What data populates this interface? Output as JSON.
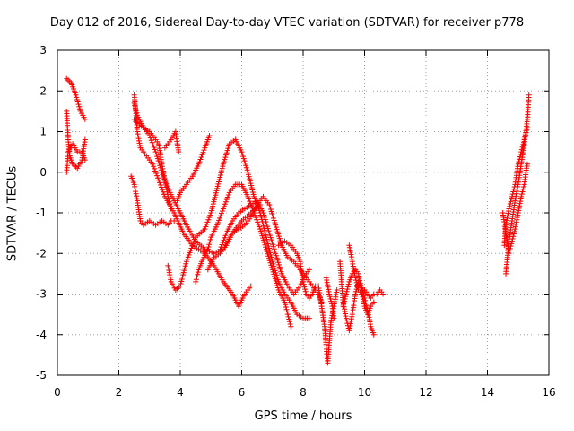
{
  "chart_data": {
    "type": "scatter",
    "title": "Day 012 of 2016, Sidereal Day-to-day VTEC variation (SDTVAR) for receiver p778",
    "xlabel": "GPS time / hours",
    "ylabel": "SDTVAR / TECUs",
    "xlim": [
      0,
      16
    ],
    "ylim": [
      -5,
      3
    ],
    "xticks": [
      "0",
      "2",
      "4",
      "6",
      "8",
      "10",
      "12",
      "14",
      "16"
    ],
    "yticks": [
      "3",
      "2",
      "1",
      "0",
      "-1",
      "-2",
      "-3",
      "-4",
      "-5"
    ],
    "xtick_values": [
      0,
      2,
      4,
      6,
      8,
      10,
      12,
      14,
      16
    ],
    "ytick_values": [
      3,
      2,
      1,
      0,
      -1,
      -2,
      -3,
      -4,
      -5
    ],
    "grid": true,
    "marker": "+",
    "color": "#ff0000",
    "series_tracks": [
      [
        [
          0.3,
          2.3
        ],
        [
          0.45,
          2.2
        ],
        [
          0.6,
          1.9
        ],
        [
          0.75,
          1.5
        ],
        [
          0.9,
          1.3
        ]
      ],
      [
        [
          0.3,
          1.5
        ],
        [
          0.35,
          0.8
        ],
        [
          0.4,
          0.4
        ],
        [
          0.5,
          0.2
        ],
        [
          0.65,
          0.1
        ],
        [
          0.8,
          0.3
        ],
        [
          0.9,
          0.8
        ]
      ],
      [
        [
          0.3,
          0.0
        ],
        [
          0.35,
          0.5
        ],
        [
          0.5,
          0.7
        ],
        [
          0.65,
          0.5
        ],
        [
          0.8,
          0.5
        ],
        [
          0.9,
          0.3
        ]
      ],
      [
        [
          2.5,
          1.9
        ],
        [
          2.55,
          1.5
        ],
        [
          2.6,
          1.0
        ],
        [
          2.7,
          0.6
        ],
        [
          2.9,
          0.4
        ],
        [
          3.1,
          0.2
        ],
        [
          3.3,
          -0.2
        ],
        [
          3.5,
          -0.6
        ],
        [
          3.8,
          -1.0
        ],
        [
          4.1,
          -1.5
        ],
        [
          4.4,
          -1.8
        ],
        [
          4.8,
          -2.0
        ],
        [
          5.1,
          -2.3
        ],
        [
          5.4,
          -2.7
        ],
        [
          5.7,
          -3.0
        ],
        [
          5.9,
          -3.3
        ],
        [
          6.1,
          -3.0
        ],
        [
          6.3,
          -2.8
        ]
      ],
      [
        [
          2.5,
          1.7
        ],
        [
          2.6,
          1.4
        ],
        [
          2.8,
          1.1
        ],
        [
          3.0,
          0.9
        ],
        [
          3.2,
          0.5
        ],
        [
          3.4,
          0.0
        ],
        [
          3.6,
          -0.4
        ],
        [
          3.8,
          -0.7
        ],
        [
          4.0,
          -1.0
        ],
        [
          4.2,
          -1.3
        ],
        [
          4.5,
          -1.7
        ],
        [
          4.8,
          -1.9
        ],
        [
          5.1,
          -2.0
        ],
        [
          5.4,
          -1.9
        ],
        [
          5.7,
          -1.5
        ],
        [
          6.0,
          -1.2
        ],
        [
          6.3,
          -1.0
        ],
        [
          6.6,
          -0.8
        ]
      ],
      [
        [
          2.5,
          1.3
        ],
        [
          2.6,
          1.2
        ],
        [
          2.8,
          1.1
        ],
        [
          3.0,
          1.0
        ],
        [
          3.2,
          0.8
        ],
        [
          3.3,
          0.7
        ],
        [
          3.4,
          0.2
        ],
        [
          3.5,
          -0.2
        ],
        [
          3.6,
          -0.6
        ],
        [
          3.7,
          -0.9
        ]
      ],
      [
        [
          2.4,
          -0.1
        ],
        [
          2.5,
          -0.3
        ],
        [
          2.6,
          -0.7
        ],
        [
          2.7,
          -1.2
        ],
        [
          2.8,
          -1.3
        ],
        [
          3.0,
          -1.2
        ],
        [
          3.2,
          -1.3
        ],
        [
          3.4,
          -1.2
        ],
        [
          3.6,
          -1.3
        ],
        [
          3.7,
          -1.2
        ],
        [
          3.8,
          -1.2
        ]
      ],
      [
        [
          3.5,
          0.6
        ],
        [
          3.7,
          0.8
        ],
        [
          3.85,
          1.0
        ],
        [
          3.9,
          0.7
        ],
        [
          3.95,
          0.5
        ]
      ],
      [
        [
          3.6,
          -2.3
        ],
        [
          3.7,
          -2.7
        ],
        [
          3.85,
          -2.9
        ],
        [
          4.0,
          -2.8
        ],
        [
          4.2,
          -2.2
        ],
        [
          4.5,
          -1.6
        ],
        [
          4.8,
          -1.4
        ],
        [
          5.0,
          -1.0
        ],
        [
          5.2,
          -0.4
        ],
        [
          5.4,
          0.2
        ],
        [
          5.6,
          0.7
        ],
        [
          5.8,
          0.8
        ],
        [
          6.0,
          0.5
        ],
        [
          6.2,
          0.0
        ],
        [
          6.4,
          -0.6
        ],
        [
          6.6,
          -1.0
        ],
        [
          6.8,
          -1.6
        ],
        [
          7.0,
          -2.2
        ],
        [
          7.2,
          -2.7
        ],
        [
          7.4,
          -3.0
        ],
        [
          7.6,
          -3.2
        ],
        [
          7.8,
          -3.5
        ],
        [
          8.0,
          -3.6
        ],
        [
          8.2,
          -3.6
        ]
      ],
      [
        [
          3.9,
          -0.7
        ],
        [
          4.0,
          -0.5
        ],
        [
          4.2,
          -0.3
        ],
        [
          4.4,
          -0.1
        ],
        [
          4.6,
          0.2
        ],
        [
          4.8,
          0.6
        ],
        [
          4.95,
          0.9
        ]
      ],
      [
        [
          4.5,
          -2.7
        ],
        [
          4.6,
          -2.4
        ],
        [
          4.7,
          -2.2
        ],
        [
          4.9,
          -1.9
        ],
        [
          5.0,
          -1.6
        ],
        [
          5.2,
          -1.3
        ],
        [
          5.4,
          -0.9
        ],
        [
          5.6,
          -0.5
        ],
        [
          5.8,
          -0.3
        ],
        [
          6.0,
          -0.3
        ],
        [
          6.2,
          -0.6
        ],
        [
          6.4,
          -1.0
        ],
        [
          6.6,
          -1.4
        ],
        [
          6.8,
          -1.9
        ],
        [
          7.0,
          -2.4
        ],
        [
          7.2,
          -2.9
        ],
        [
          7.4,
          -3.2
        ],
        [
          7.5,
          -3.5
        ],
        [
          7.6,
          -3.8
        ]
      ],
      [
        [
          4.9,
          -2.4
        ],
        [
          5.1,
          -2.1
        ],
        [
          5.3,
          -2.0
        ],
        [
          5.5,
          -1.8
        ],
        [
          5.7,
          -1.5
        ],
        [
          5.9,
          -1.4
        ],
        [
          6.1,
          -1.3
        ],
        [
          6.3,
          -1.1
        ],
        [
          6.5,
          -0.8
        ],
        [
          6.7,
          -0.6
        ],
        [
          6.9,
          -0.8
        ],
        [
          7.1,
          -1.3
        ],
        [
          7.3,
          -1.8
        ],
        [
          7.5,
          -2.1
        ],
        [
          7.7,
          -2.2
        ],
        [
          7.9,
          -2.4
        ],
        [
          8.1,
          -2.6
        ],
        [
          8.3,
          -2.8
        ],
        [
          8.5,
          -3.0
        ],
        [
          8.6,
          -3.2
        ]
      ],
      [
        [
          5.3,
          -1.9
        ],
        [
          5.5,
          -1.5
        ],
        [
          5.7,
          -1.2
        ],
        [
          5.9,
          -1.0
        ],
        [
          6.1,
          -0.9
        ],
        [
          6.3,
          -0.8
        ],
        [
          6.5,
          -0.7
        ],
        [
          6.7,
          -1.0
        ],
        [
          6.9,
          -1.5
        ],
        [
          7.1,
          -2.0
        ],
        [
          7.3,
          -2.5
        ],
        [
          7.5,
          -2.8
        ],
        [
          7.7,
          -3.0
        ],
        [
          7.9,
          -2.8
        ],
        [
          8.1,
          -2.5
        ],
        [
          8.2,
          -2.4
        ]
      ],
      [
        [
          7.2,
          -1.8
        ],
        [
          7.4,
          -1.7
        ],
        [
          7.6,
          -1.8
        ],
        [
          7.8,
          -2.0
        ],
        [
          7.9,
          -2.2
        ],
        [
          8.0,
          -2.7
        ],
        [
          8.1,
          -3.0
        ],
        [
          8.2,
          -3.1
        ],
        [
          8.3,
          -3.0
        ],
        [
          8.4,
          -2.8
        ]
      ],
      [
        [
          8.5,
          -2.8
        ],
        [
          8.6,
          -3.3
        ],
        [
          8.7,
          -3.8
        ],
        [
          8.75,
          -4.3
        ],
        [
          8.8,
          -4.7
        ],
        [
          8.85,
          -4.2
        ],
        [
          8.9,
          -3.7
        ],
        [
          9.0,
          -3.3
        ],
        [
          9.1,
          -2.9
        ]
      ],
      [
        [
          8.75,
          -2.6
        ],
        [
          8.85,
          -3.0
        ],
        [
          8.95,
          -3.3
        ],
        [
          9.0,
          -3.6
        ]
      ],
      [
        [
          9.2,
          -2.2
        ],
        [
          9.25,
          -2.7
        ],
        [
          9.3,
          -3.2
        ],
        [
          9.4,
          -3.6
        ],
        [
          9.5,
          -3.9
        ],
        [
          9.6,
          -3.5
        ],
        [
          9.7,
          -3.0
        ],
        [
          9.8,
          -2.7
        ],
        [
          9.9,
          -2.8
        ],
        [
          10.0,
          -3.1
        ],
        [
          10.1,
          -3.4
        ],
        [
          10.2,
          -3.8
        ],
        [
          10.3,
          -4.0
        ]
      ],
      [
        [
          9.5,
          -1.8
        ],
        [
          9.6,
          -2.2
        ],
        [
          9.7,
          -2.6
        ],
        [
          9.8,
          -2.9
        ],
        [
          9.9,
          -3.0
        ],
        [
          10.0,
          -2.9
        ],
        [
          10.1,
          -3.0
        ],
        [
          10.2,
          -3.1
        ],
        [
          10.3,
          -3.0
        ],
        [
          10.4,
          -3.0
        ],
        [
          10.5,
          -2.9
        ],
        [
          10.6,
          -3.0
        ]
      ],
      [
        [
          9.3,
          -3.3
        ],
        [
          9.4,
          -3.0
        ],
        [
          9.5,
          -2.7
        ],
        [
          9.6,
          -2.5
        ],
        [
          9.7,
          -2.4
        ],
        [
          9.8,
          -2.5
        ],
        [
          9.9,
          -2.9
        ],
        [
          10.0,
          -3.3
        ],
        [
          10.1,
          -3.5
        ],
        [
          10.2,
          -3.3
        ],
        [
          10.3,
          -3.2
        ]
      ],
      [
        [
          14.6,
          -2.5
        ],
        [
          14.65,
          -2.1
        ],
        [
          14.7,
          -1.7
        ],
        [
          14.8,
          -1.2
        ],
        [
          14.9,
          -0.7
        ],
        [
          15.0,
          -0.3
        ],
        [
          15.1,
          0.2
        ],
        [
          15.2,
          0.7
        ],
        [
          15.3,
          1.3
        ],
        [
          15.35,
          1.9
        ]
      ],
      [
        [
          14.55,
          -1.8
        ],
        [
          14.6,
          -1.3
        ],
        [
          14.7,
          -0.9
        ],
        [
          14.8,
          -0.6
        ],
        [
          14.9,
          -0.3
        ],
        [
          15.0,
          0.2
        ],
        [
          15.1,
          0.5
        ],
        [
          15.2,
          0.8
        ],
        [
          15.3,
          1.1
        ]
      ],
      [
        [
          14.5,
          -1.0
        ],
        [
          14.6,
          -1.5
        ],
        [
          14.7,
          -2.0
        ],
        [
          14.8,
          -1.7
        ],
        [
          14.9,
          -1.4
        ],
        [
          15.0,
          -1.0
        ],
        [
          15.1,
          -0.6
        ],
        [
          15.2,
          -0.3
        ],
        [
          15.25,
          0.0
        ],
        [
          15.3,
          0.2
        ]
      ]
    ]
  }
}
